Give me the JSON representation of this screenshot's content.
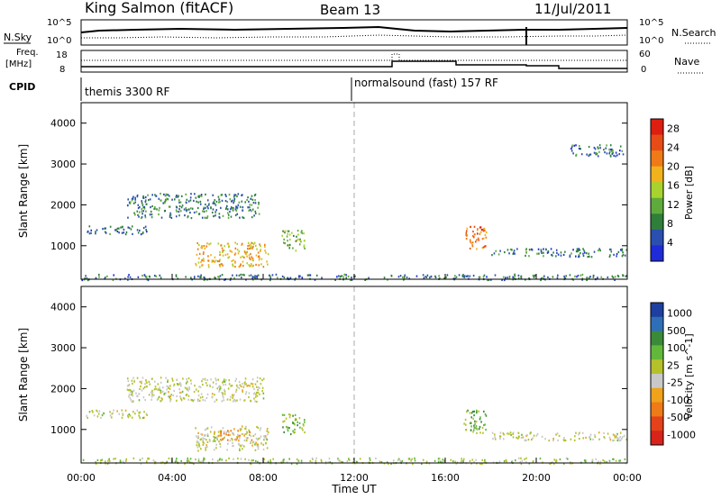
{
  "header": {
    "title": "King Salmon (fitACF)",
    "beam": "Beam 13",
    "date": "11/Jul/2011"
  },
  "top_panels": {
    "nsky_label": "N.Sky",
    "nsky_ticks": [
      "10^5",
      "10^0"
    ],
    "nsearch_label": "N.Search",
    "nsearch_ticks": [
      "10^5",
      "10^0"
    ],
    "freq_label": "Freq.",
    "freq_unit": "[MHz]",
    "freq_ticks": [
      "18",
      "8"
    ],
    "nave_label": "Nave",
    "nave_ticks": [
      "60",
      "0"
    ],
    "cpid_label": "CPID",
    "cpid_modes": [
      "themis 3300 RF",
      "normalsound (fast) 157 RF"
    ]
  },
  "colors": {
    "power_scale": [
      "#1f2bd8",
      "#2a4fb0",
      "#2f7f3a",
      "#5faa3c",
      "#a8d22e",
      "#f1b21d",
      "#f07a17",
      "#e84c16",
      "#de1e10"
    ],
    "velocity_scale": [
      "#1e3fa0",
      "#2f6fb7",
      "#3a8a3a",
      "#62b83a",
      "#b5c12a",
      "#c8c8c8",
      "#f0a21a",
      "#ef7a18",
      "#e4421a",
      "#d8231a"
    ]
  },
  "chart_data": [
    {
      "type": "heatmap",
      "title": "",
      "xlabel": "Time UT",
      "ylabel": "Slant Range [km]",
      "x_ticks": [
        "00:00",
        "04:00",
        "08:00",
        "12:00",
        "16:00",
        "20:00",
        "00:00"
      ],
      "xlim_hours": [
        0,
        24
      ],
      "ylim_km": [
        180,
        4500
      ],
      "y_ticks": [
        1000,
        2000,
        3000,
        4000
      ],
      "colorbar": {
        "label": "Power [dB]",
        "ticks": [
          "4",
          "8",
          "12",
          "16",
          "20",
          "24",
          "28"
        ],
        "range": [
          0,
          30
        ]
      },
      "features": [
        {
          "t": [
            0.0,
            24.0
          ],
          "r": [
            180,
            320
          ],
          "power_db": 6
        },
        {
          "t": [
            2.0,
            7.8
          ],
          "r": [
            1700,
            2300
          ],
          "power_db": 7
        },
        {
          "t": [
            0.2,
            3.0
          ],
          "r": [
            1300,
            1500
          ],
          "power_db": 5
        },
        {
          "t": [
            5.0,
            8.2
          ],
          "r": [
            500,
            1100
          ],
          "power_db": 19
        },
        {
          "t": [
            8.8,
            9.8
          ],
          "r": [
            900,
            1400
          ],
          "power_db": 12
        },
        {
          "t": [
            16.8,
            17.8
          ],
          "r": [
            900,
            1500
          ],
          "power_db": 24
        },
        {
          "t": [
            18.0,
            24.0
          ],
          "r": [
            750,
            950
          ],
          "power_db": 6
        },
        {
          "t": [
            21.5,
            23.8
          ],
          "r": [
            3200,
            3500
          ],
          "power_db": 6
        }
      ]
    },
    {
      "type": "heatmap",
      "title": "",
      "xlabel": "Time UT",
      "ylabel": "Slant Range [km]",
      "x_ticks": [
        "00:00",
        "04:00",
        "08:00",
        "12:00",
        "16:00",
        "20:00",
        "00:00"
      ],
      "xlim_hours": [
        0,
        24
      ],
      "ylim_km": [
        180,
        4500
      ],
      "y_ticks": [
        1000,
        2000,
        3000,
        4000
      ],
      "colorbar": {
        "label": "Velocity [m s^-1]",
        "ticks": [
          "1000",
          "500",
          "100",
          "25",
          "-25",
          "-100",
          "-500",
          "-1000"
        ],
        "range": [
          -1000,
          1000
        ]
      },
      "features": [
        {
          "t": [
            0.0,
            24.0
          ],
          "r": [
            180,
            320
          ],
          "velocity": 150
        },
        {
          "t": [
            2.0,
            8.0
          ],
          "r": [
            1700,
            2300
          ],
          "velocity": 0
        },
        {
          "t": [
            0.2,
            3.0
          ],
          "r": [
            1300,
            1500
          ],
          "velocity": 0
        },
        {
          "t": [
            5.0,
            8.2
          ],
          "r": [
            500,
            1100
          ],
          "velocity": 0
        },
        {
          "t": [
            6.0,
            7.5
          ],
          "r": [
            750,
            1000
          ],
          "velocity": -400
        },
        {
          "t": [
            8.8,
            9.8
          ],
          "r": [
            900,
            1400
          ],
          "velocity": 300
        },
        {
          "t": [
            16.8,
            17.8
          ],
          "r": [
            900,
            1500
          ],
          "velocity": 300
        },
        {
          "t": [
            18.0,
            24.0
          ],
          "r": [
            750,
            950
          ],
          "velocity": 0
        }
      ]
    }
  ]
}
